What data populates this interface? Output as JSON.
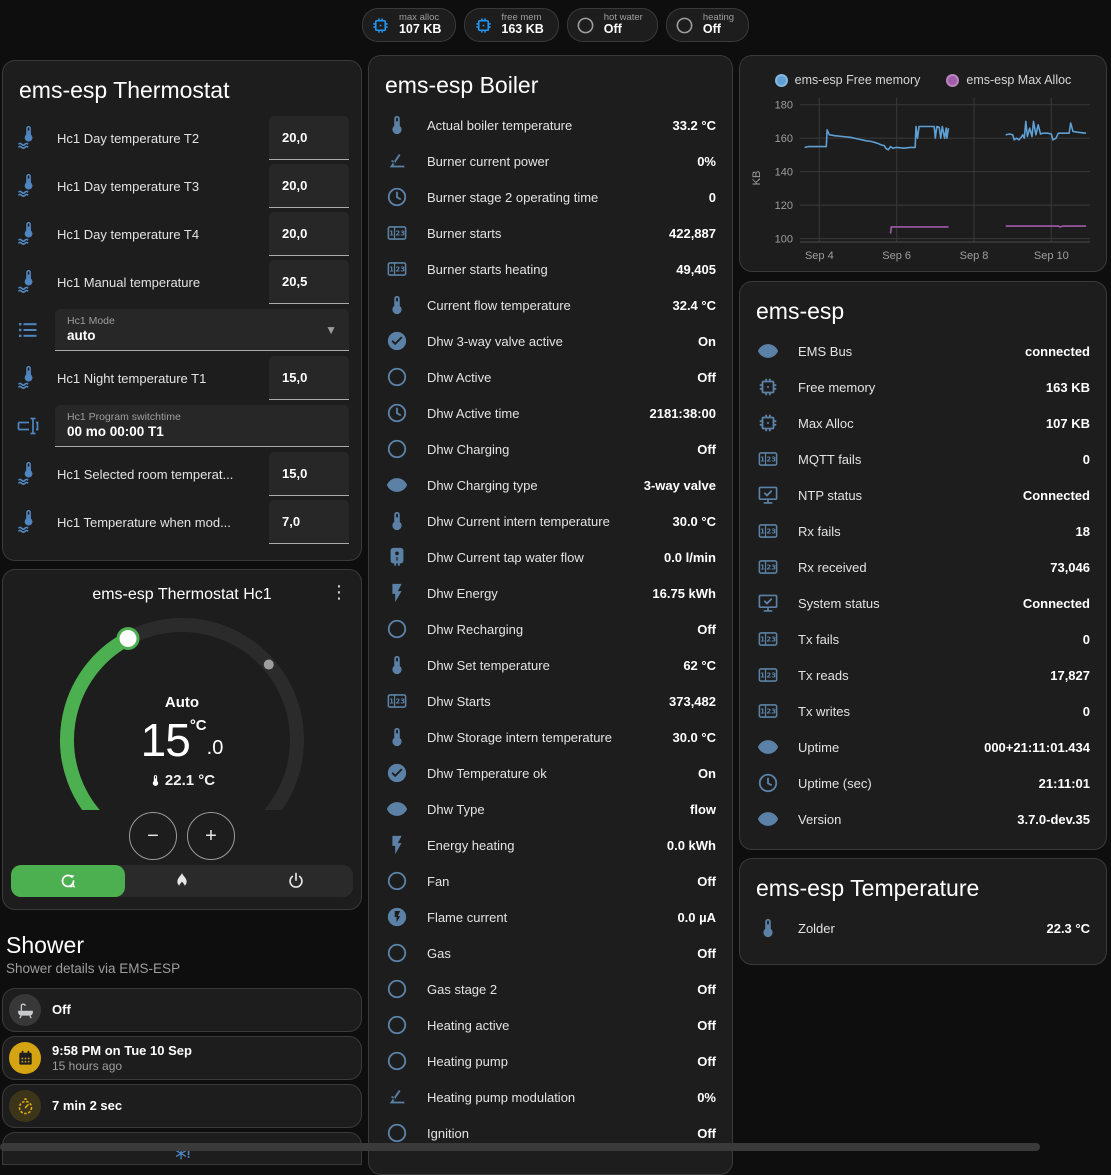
{
  "colors": {
    "accent_green": "#4caf50",
    "icon_blue_left": "#4e87c0",
    "icon_steel": "#5b82a6",
    "chip_blue": "#2196f3",
    "amber": "#d5a412",
    "free_mem_line": "#5e9fd4",
    "max_alloc_line": "#a05ca8"
  },
  "header": {
    "badges": [
      {
        "icon": "memory-chip-icon",
        "icon_color": "#2196f3",
        "label": "max alloc",
        "value": "107 KB"
      },
      {
        "icon": "memory-chip-icon",
        "icon_color": "#2196f3",
        "label": "free mem",
        "value": "163 KB"
      },
      {
        "icon": "circle-outline-icon",
        "icon_color": "#9e9e9e",
        "label": "hot water",
        "value": "Off"
      },
      {
        "icon": "circle-outline-icon",
        "icon_color": "#9e9e9e",
        "label": "heating",
        "value": "Off"
      }
    ]
  },
  "thermostat_card": {
    "title": "ems-esp Thermostat",
    "rows": [
      {
        "type": "number",
        "icon": "water-thermometer-icon",
        "label": "Hc1 Day temperature T2",
        "value": "20,0"
      },
      {
        "type": "number",
        "icon": "water-thermometer-icon",
        "label": "Hc1 Day temperature T3",
        "value": "20,0"
      },
      {
        "type": "number",
        "icon": "water-thermometer-icon",
        "label": "Hc1 Day temperature T4",
        "value": "20,0"
      },
      {
        "type": "number",
        "icon": "water-thermometer-icon",
        "label": "Hc1 Manual temperature",
        "value": "20,5"
      },
      {
        "type": "select",
        "icon": "format-list-icon",
        "label": "Hc1 Mode",
        "value": "auto"
      },
      {
        "type": "number",
        "icon": "water-thermometer-icon",
        "label": "Hc1 Night temperature T1",
        "value": "15,0"
      },
      {
        "type": "text",
        "icon": "form-textbox-icon",
        "label": "Hc1 Program switchtime",
        "value": "00 mo 00:00 T1"
      },
      {
        "type": "number",
        "icon": "water-thermometer-icon",
        "label": "Hc1 Selected room temperat...",
        "value": "15,0"
      },
      {
        "type": "number",
        "icon": "water-thermometer-icon",
        "label": "Hc1 Temperature when mod...",
        "value": "7,0"
      }
    ]
  },
  "dial_card": {
    "title": "ems-esp Thermostat Hc1",
    "menu_icon": "⋮",
    "mode_label": "Auto",
    "temp_int": "15",
    "temp_frac": ".0",
    "temp_unit": "°C",
    "current_temp": "22.1 °C",
    "minus": "−",
    "plus": "+",
    "modes": [
      {
        "icon": "auto-mode-icon",
        "active": true
      },
      {
        "icon": "fire-icon",
        "active": false
      },
      {
        "icon": "power-icon",
        "active": false
      }
    ]
  },
  "shower": {
    "title": "Shower",
    "subtitle": "Shower details via EMS-ESP",
    "tiles": [
      {
        "icon": "bathtub-icon",
        "style": "gray",
        "primary": "Off",
        "secondary": ""
      },
      {
        "icon": "calendar-icon",
        "style": "amber",
        "primary": "9:58 PM on Tue 10 Sep",
        "secondary": "15 hours ago"
      },
      {
        "icon": "timer-icon",
        "style": "amberdim",
        "primary": "7 min 2 sec",
        "secondary": ""
      }
    ],
    "partial_icon": "snowflake-alert-icon"
  },
  "boiler_card": {
    "title": "ems-esp Boiler",
    "rows": [
      {
        "icon": "thermometer-icon",
        "label": "Actual boiler temperature",
        "value": "33.2 °C"
      },
      {
        "icon": "angle-acute-icon",
        "label": "Burner current power",
        "value": "0%"
      },
      {
        "icon": "clock-icon",
        "label": "Burner stage 2 operating time",
        "value": "0"
      },
      {
        "icon": "counter-icon",
        "label": "Burner starts",
        "value": "422,887"
      },
      {
        "icon": "counter-icon",
        "label": "Burner starts heating",
        "value": "49,405"
      },
      {
        "icon": "thermometer-icon",
        "label": "Current flow temperature",
        "value": "32.4 °C"
      },
      {
        "icon": "check-circle-icon",
        "label": "Dhw 3-way valve active",
        "value": "On"
      },
      {
        "icon": "circle-outline-icon",
        "label": "Dhw Active",
        "value": "Off"
      },
      {
        "icon": "clock-icon",
        "label": "Dhw Active time",
        "value": "2181:38:00"
      },
      {
        "icon": "circle-outline-icon",
        "label": "Dhw Charging",
        "value": "Off"
      },
      {
        "icon": "eye-icon",
        "label": "Dhw Charging type",
        "value": "3-way valve"
      },
      {
        "icon": "thermometer-icon",
        "label": "Dhw Current intern temperature",
        "value": "30.0 °C"
      },
      {
        "icon": "water-boiler-icon",
        "label": "Dhw Current tap water flow",
        "value": "0.0 l/min"
      },
      {
        "icon": "flash-icon",
        "label": "Dhw Energy",
        "value": "16.75 kWh"
      },
      {
        "icon": "circle-outline-icon",
        "label": "Dhw Recharging",
        "value": "Off"
      },
      {
        "icon": "thermometer-icon",
        "label": "Dhw Set temperature",
        "value": "62 °C"
      },
      {
        "icon": "counter-icon",
        "label": "Dhw Starts",
        "value": "373,482"
      },
      {
        "icon": "thermometer-icon",
        "label": "Dhw Storage intern temperature",
        "value": "30.0 °C"
      },
      {
        "icon": "check-circle-icon",
        "label": "Dhw Temperature ok",
        "value": "On"
      },
      {
        "icon": "eye-icon",
        "label": "Dhw Type",
        "value": "flow"
      },
      {
        "icon": "flash-icon",
        "label": "Energy heating",
        "value": "0.0 kWh"
      },
      {
        "icon": "circle-outline-icon",
        "label": "Fan",
        "value": "Off"
      },
      {
        "icon": "flash-circle-icon",
        "label": "Flame current",
        "value": "0.0 µA"
      },
      {
        "icon": "circle-outline-icon",
        "label": "Gas",
        "value": "Off"
      },
      {
        "icon": "circle-outline-icon",
        "label": "Gas stage 2",
        "value": "Off"
      },
      {
        "icon": "circle-outline-icon",
        "label": "Heating active",
        "value": "Off"
      },
      {
        "icon": "circle-outline-icon",
        "label": "Heating pump",
        "value": "Off"
      },
      {
        "icon": "angle-acute-icon",
        "label": "Heating pump modulation",
        "value": "0%"
      },
      {
        "icon": "circle-outline-icon",
        "label": "Ignition",
        "value": "Off"
      }
    ]
  },
  "diag_card": {
    "title": "ems-esp",
    "rows": [
      {
        "icon": "eye-icon",
        "label": "EMS Bus",
        "value": "connected"
      },
      {
        "icon": "memory-chip-icon",
        "label": "Free memory",
        "value": "163 KB"
      },
      {
        "icon": "memory-chip-icon",
        "label": "Max Alloc",
        "value": "107 KB"
      },
      {
        "icon": "counter-icon",
        "label": "MQTT fails",
        "value": "0"
      },
      {
        "icon": "monitor-check-icon",
        "label": "NTP status",
        "value": "Connected"
      },
      {
        "icon": "counter-icon",
        "label": "Rx fails",
        "value": "18"
      },
      {
        "icon": "counter-icon",
        "label": "Rx received",
        "value": "73,046"
      },
      {
        "icon": "monitor-check-icon",
        "label": "System status",
        "value": "Connected"
      },
      {
        "icon": "counter-icon",
        "label": "Tx fails",
        "value": "0"
      },
      {
        "icon": "counter-icon",
        "label": "Tx reads",
        "value": "17,827"
      },
      {
        "icon": "counter-icon",
        "label": "Tx writes",
        "value": "0"
      },
      {
        "icon": "eye-icon",
        "label": "Uptime",
        "value": "000+21:11:01.434"
      },
      {
        "icon": "clock-icon",
        "label": "Uptime (sec)",
        "value": "21:11:01"
      },
      {
        "icon": "eye-icon",
        "label": "Version",
        "value": "3.7.0-dev.35"
      }
    ]
  },
  "temp_card": {
    "title": "ems-esp Temperature",
    "rows": [
      {
        "icon": "thermometer-icon",
        "label": "Zolder",
        "value": "22.3 °C"
      }
    ]
  },
  "chart_data": {
    "type": "line",
    "ylabel": "KB",
    "x_domain": [
      3.5,
      11.0
    ],
    "y_domain": [
      98,
      184
    ],
    "x_ticks": [
      {
        "v": 4,
        "label": "Sep 4"
      },
      {
        "v": 6,
        "label": "Sep 6"
      },
      {
        "v": 8,
        "label": "Sep 8"
      },
      {
        "v": 10,
        "label": "Sep 10"
      }
    ],
    "y_ticks": [
      100,
      120,
      140,
      160,
      180
    ],
    "legend_position": "top",
    "grid": true,
    "series": [
      {
        "name": "ems-esp Free memory",
        "color": "#5e9fd4",
        "segments": [
          [
            [
              3.62,
              154.5
            ],
            [
              3.72,
              155
            ],
            [
              4.18,
              155
            ],
            [
              4.2,
              165
            ],
            [
              4.26,
              162
            ],
            [
              4.4,
              161.5
            ],
            [
              4.6,
              161
            ],
            [
              4.8,
              160.5
            ],
            [
              5.0,
              159.5
            ],
            [
              5.2,
              158.5
            ],
            [
              5.35,
              158
            ],
            [
              5.5,
              157
            ],
            [
              5.6,
              156
            ],
            [
              5.68,
              155.5
            ],
            [
              5.72,
              154
            ],
            [
              5.78,
              153
            ],
            [
              5.84,
              155
            ],
            [
              5.9,
              154
            ],
            [
              6.0,
              154.5
            ],
            [
              6.2,
              154
            ],
            [
              6.35,
              154.5
            ],
            [
              6.48,
              154.5
            ],
            [
              6.5,
              167
            ],
            [
              6.54,
              160
            ],
            [
              6.58,
              167
            ],
            [
              6.97,
              167
            ],
            [
              7.0,
              160
            ],
            [
              7.04,
              167
            ],
            [
              7.1,
              166.5
            ],
            [
              7.14,
              160
            ],
            [
              7.18,
              167
            ],
            [
              7.24,
              160
            ],
            [
              7.28,
              166
            ],
            [
              7.3,
              160
            ],
            [
              7.34,
              166
            ]
          ],
          [
            [
              8.82,
              162
            ],
            [
              8.92,
              162.5
            ],
            [
              9.0,
              162
            ],
            [
              9.04,
              159
            ],
            [
              9.1,
              160
            ],
            [
              9.16,
              159
            ],
            [
              9.22,
              160.5
            ],
            [
              9.26,
              162
            ],
            [
              9.3,
              160
            ],
            [
              9.34,
              170
            ],
            [
              9.38,
              161
            ],
            [
              9.44,
              166
            ],
            [
              9.5,
              161
            ],
            [
              9.54,
              170
            ],
            [
              9.6,
              162
            ],
            [
              9.66,
              168
            ],
            [
              9.72,
              162.5
            ],
            [
              9.78,
              163
            ],
            [
              9.9,
              163
            ],
            [
              10.0,
              162.5
            ],
            [
              10.04,
              159
            ],
            [
              10.12,
              160
            ],
            [
              10.18,
              163
            ],
            [
              10.3,
              163
            ],
            [
              10.46,
              163
            ],
            [
              10.5,
              169
            ],
            [
              10.56,
              164
            ],
            [
              10.7,
              163.5
            ],
            [
              10.9,
              163
            ]
          ]
        ]
      },
      {
        "name": "ems-esp Max Alloc",
        "color": "#a05ca8",
        "segments": [
          [
            [
              5.84,
              103
            ],
            [
              5.86,
              107
            ],
            [
              7.34,
              107
            ]
          ],
          [
            [
              8.82,
              107.5
            ],
            [
              10.18,
              107.5
            ],
            [
              10.22,
              107
            ],
            [
              10.3,
              107.5
            ],
            [
              10.9,
              107.5
            ]
          ]
        ]
      }
    ]
  }
}
